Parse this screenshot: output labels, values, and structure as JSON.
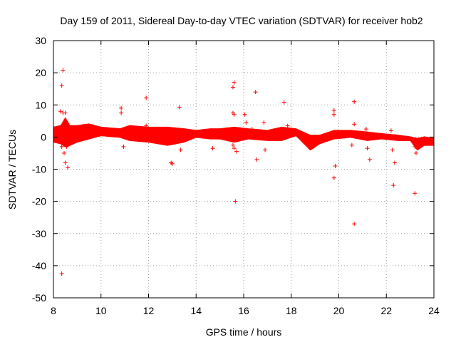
{
  "chart_data": {
    "type": "scatter",
    "title": "Day 159 of 2011, Sidereal Day-to-day VTEC variation (SDTVAR) for receiver hob2",
    "xlabel": "GPS time / hours",
    "ylabel": "SDTVAR / TECUs",
    "xlim": [
      8,
      24
    ],
    "ylim": [
      -50,
      30
    ],
    "xticks": [
      8,
      10,
      12,
      14,
      16,
      18,
      20,
      22,
      24
    ],
    "yticks": [
      -50,
      -40,
      -30,
      -20,
      -10,
      0,
      10,
      20,
      30
    ],
    "grid": true,
    "marker": "+",
    "color": "#ff0000",
    "band": [
      {
        "x": 8.0,
        "lo": -1.5,
        "hi": 3.0
      },
      {
        "x": 8.3,
        "lo": -2.0,
        "hi": 3.5
      },
      {
        "x": 8.5,
        "lo": -3.0,
        "hi": 6.0
      },
      {
        "x": 8.7,
        "lo": -2.5,
        "hi": 3.5
      },
      {
        "x": 9.0,
        "lo": -1.5,
        "hi": 3.5
      },
      {
        "x": 9.5,
        "lo": -0.5,
        "hi": 4.0
      },
      {
        "x": 10.0,
        "lo": 0.5,
        "hi": 3.0
      },
      {
        "x": 10.8,
        "lo": 0.0,
        "hi": 2.5
      },
      {
        "x": 11.2,
        "lo": -1.0,
        "hi": 3.5
      },
      {
        "x": 12.0,
        "lo": -1.5,
        "hi": 3.0
      },
      {
        "x": 12.8,
        "lo": -2.5,
        "hi": 3.0
      },
      {
        "x": 13.5,
        "lo": -1.5,
        "hi": 2.5
      },
      {
        "x": 14.0,
        "lo": 0.0,
        "hi": 2.0
      },
      {
        "x": 14.6,
        "lo": -0.5,
        "hi": 2.5
      },
      {
        "x": 15.0,
        "lo": -0.5,
        "hi": 2.5
      },
      {
        "x": 15.6,
        "lo": -1.5,
        "hi": 3.0
      },
      {
        "x": 16.2,
        "lo": -0.5,
        "hi": 2.5
      },
      {
        "x": 17.0,
        "lo": -1.0,
        "hi": 2.0
      },
      {
        "x": 17.6,
        "lo": -1.0,
        "hi": 3.0
      },
      {
        "x": 18.2,
        "lo": 0.5,
        "hi": 2.5
      },
      {
        "x": 18.8,
        "lo": -4.0,
        "hi": 0.5
      },
      {
        "x": 19.2,
        "lo": -2.0,
        "hi": 0.5
      },
      {
        "x": 19.8,
        "lo": -0.5,
        "hi": 2.0
      },
      {
        "x": 20.5,
        "lo": 0.0,
        "hi": 2.0
      },
      {
        "x": 21.2,
        "lo": -1.0,
        "hi": 1.5
      },
      {
        "x": 21.8,
        "lo": -0.5,
        "hi": 1.0
      },
      {
        "x": 22.5,
        "lo": -1.0,
        "hi": 0.5
      },
      {
        "x": 23.0,
        "lo": -1.0,
        "hi": 0.0
      },
      {
        "x": 23.3,
        "lo": -4.0,
        "hi": -0.5
      },
      {
        "x": 23.6,
        "lo": -2.5,
        "hi": 0.0
      },
      {
        "x": 24.0,
        "lo": -2.5,
        "hi": -0.5
      }
    ],
    "outliers": [
      [
        8.4,
        20.8
      ],
      [
        8.35,
        16.0
      ],
      [
        8.3,
        8.0
      ],
      [
        8.4,
        7.5
      ],
      [
        8.5,
        7.5
      ],
      [
        8.45,
        -5.0
      ],
      [
        8.35,
        -3.0
      ],
      [
        8.55,
        -3.0
      ],
      [
        8.5,
        -8.0
      ],
      [
        8.6,
        -9.5
      ],
      [
        8.35,
        -42.5
      ],
      [
        10.85,
        9.0
      ],
      [
        10.85,
        7.5
      ],
      [
        10.95,
        -3.0
      ],
      [
        11.9,
        12.2
      ],
      [
        11.9,
        3.5
      ],
      [
        12.95,
        -8.0
      ],
      [
        13.0,
        -8.3
      ],
      [
        13.3,
        9.3
      ],
      [
        13.35,
        -4.0
      ],
      [
        14.7,
        -3.5
      ],
      [
        15.6,
        17.0
      ],
      [
        15.55,
        15.5
      ],
      [
        15.55,
        7.5
      ],
      [
        15.6,
        7.0
      ],
      [
        15.55,
        -2.5
      ],
      [
        15.6,
        -3.5
      ],
      [
        15.7,
        -4.5
      ],
      [
        15.65,
        -20.0
      ],
      [
        16.05,
        7.0
      ],
      [
        16.1,
        4.5
      ],
      [
        16.5,
        14.0
      ],
      [
        16.35,
        2.5
      ],
      [
        16.55,
        -7.0
      ],
      [
        16.85,
        4.5
      ],
      [
        16.9,
        -4.0
      ],
      [
        17.7,
        10.8
      ],
      [
        17.85,
        3.5
      ],
      [
        19.8,
        8.3
      ],
      [
        19.8,
        7.0
      ],
      [
        19.85,
        -9.0
      ],
      [
        19.8,
        -12.7
      ],
      [
        20.65,
        11.0
      ],
      [
        20.65,
        4.0
      ],
      [
        20.55,
        -2.5
      ],
      [
        20.65,
        -27.0
      ],
      [
        21.15,
        2.5
      ],
      [
        21.2,
        -3.5
      ],
      [
        21.3,
        -7.0
      ],
      [
        22.2,
        2.0
      ],
      [
        22.25,
        -4.0
      ],
      [
        22.35,
        -8.0
      ],
      [
        22.3,
        -15.0
      ],
      [
        23.2,
        -3.0
      ],
      [
        23.25,
        -5.0
      ],
      [
        23.2,
        -17.5
      ]
    ]
  }
}
